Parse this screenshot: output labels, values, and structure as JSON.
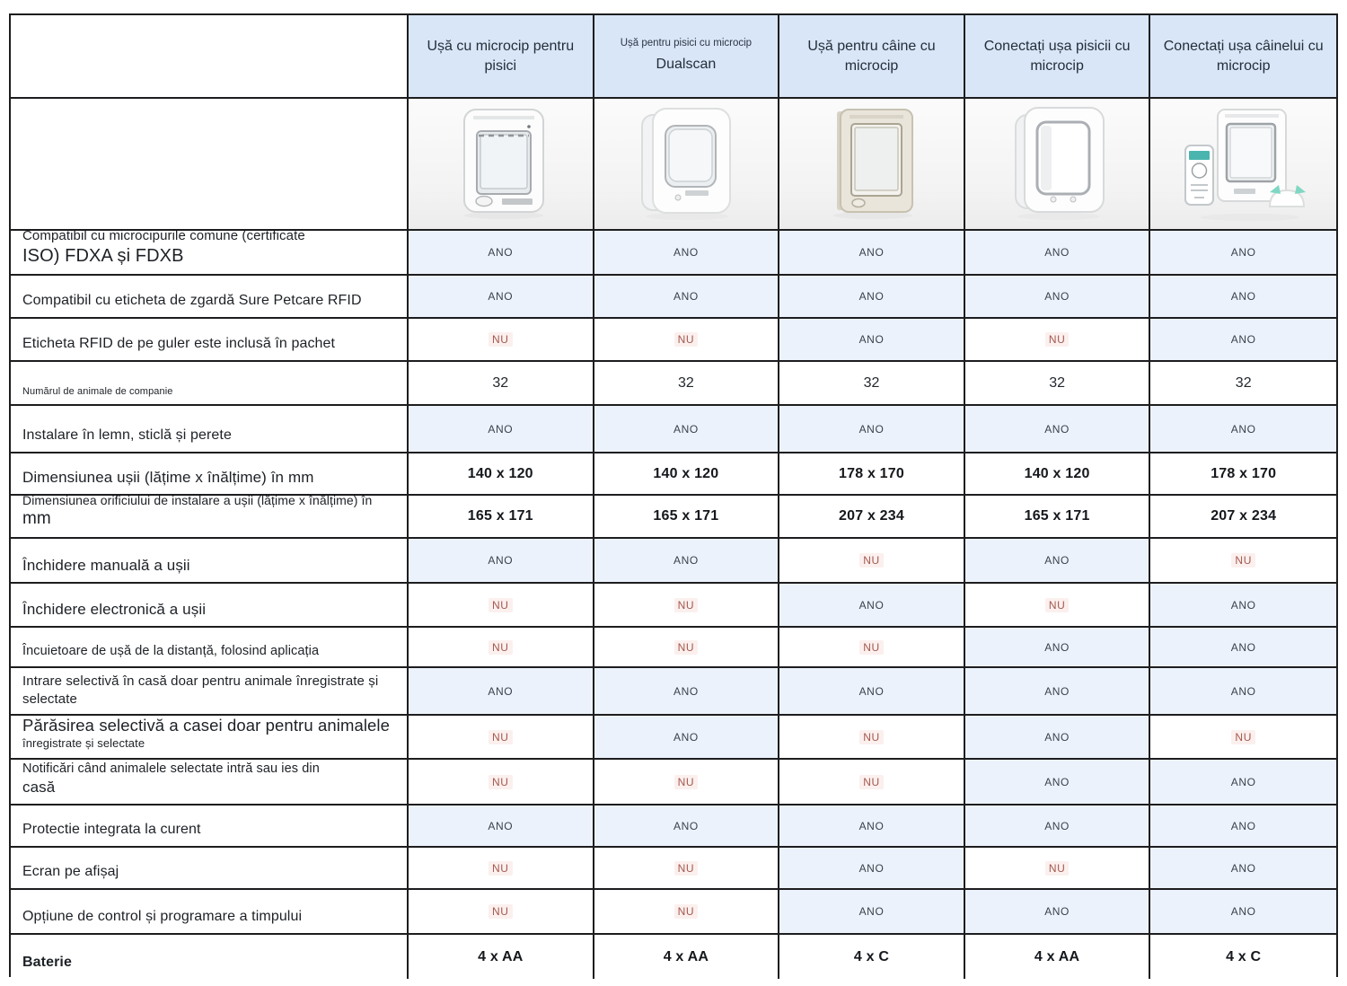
{
  "table": {
    "corner_label": "",
    "yes_label": "ANO",
    "no_label": "NU",
    "products": [
      {
        "small_label": "",
        "label": "Ușă cu microcip pentru pisici",
        "image": "cat-flap"
      },
      {
        "small_label": "Ușă pentru pisici cu microcip",
        "label": "Dualscan",
        "image": "dualscan-flap"
      },
      {
        "small_label": "",
        "label": "Ușă pentru câine cu microcip",
        "image": "dog-flap"
      },
      {
        "small_label": "",
        "label": "Conectați ușa pisicii cu microcip",
        "image": "connect-cat-flap"
      },
      {
        "small_label": "",
        "label": "Conectați ușa câinelui cu microcip",
        "image": "connect-dog-flap"
      }
    ],
    "rows": [
      {
        "id": "compatibil-microcipuri",
        "label_lines": [
          {
            "text": "Compatibil cu microcipurile comune (certificate",
            "size": 15
          },
          {
            "text": "ISO) FDXA și FDXB",
            "size": 20
          }
        ],
        "values": [
          {
            "text": "ANO",
            "kind": "yes"
          },
          {
            "text": "ANO",
            "kind": "yes"
          },
          {
            "text": "ANO",
            "kind": "yes"
          },
          {
            "text": "ANO",
            "kind": "yes"
          },
          {
            "text": "ANO",
            "kind": "yes"
          }
        ]
      },
      {
        "id": "compatibil-eticheta-rfid",
        "label_lines": [
          {
            "text": "Compatibil cu eticheta de zgardă Sure Petcare RFID",
            "size": 16
          }
        ],
        "values": [
          {
            "text": "ANO",
            "kind": "yes"
          },
          {
            "text": "ANO",
            "kind": "yes"
          },
          {
            "text": "ANO",
            "kind": "yes"
          },
          {
            "text": "ANO",
            "kind": "yes"
          },
          {
            "text": "ANO",
            "kind": "yes"
          }
        ]
      },
      {
        "id": "eticheta-rfid-inclusa",
        "label_lines": [
          {
            "text": "Eticheta RFID de pe guler este inclusă în pachet",
            "size": 16
          }
        ],
        "values": [
          {
            "text": "NU",
            "kind": "no"
          },
          {
            "text": "NU",
            "kind": "no"
          },
          {
            "text": "ANO",
            "kind": "yes"
          },
          {
            "text": "NU",
            "kind": "no"
          },
          {
            "text": "ANO",
            "kind": "yes"
          }
        ]
      },
      {
        "id": "numar-animale",
        "label_lines": [
          {
            "text": "Numărul de animale de companie",
            "size": 11
          }
        ],
        "values": [
          {
            "text": "32",
            "kind": "number"
          },
          {
            "text": "32",
            "kind": "number"
          },
          {
            "text": "32",
            "kind": "number"
          },
          {
            "text": "32",
            "kind": "number"
          },
          {
            "text": "32",
            "kind": "number"
          }
        ]
      },
      {
        "id": "instalare-lemn-sticla-perete",
        "label_lines": [
          {
            "text": "Instalare în lemn, sticlă și perete",
            "size": 16
          }
        ],
        "values": [
          {
            "text": "ANO",
            "kind": "yes"
          },
          {
            "text": "ANO",
            "kind": "yes"
          },
          {
            "text": "ANO",
            "kind": "yes"
          },
          {
            "text": "ANO",
            "kind": "yes"
          },
          {
            "text": "ANO",
            "kind": "yes"
          }
        ]
      },
      {
        "id": "dimensiune-usa",
        "label_lines": [
          {
            "text": "Dimensiunea ușii (lățime x înălțime) în mm",
            "size": 17
          }
        ],
        "values": [
          {
            "text": "140 x 120",
            "kind": "dim"
          },
          {
            "text": "140 x 120",
            "kind": "dim"
          },
          {
            "text": "178 x 170",
            "kind": "dim"
          },
          {
            "text": "140 x 120",
            "kind": "dim"
          },
          {
            "text": "178 x 170",
            "kind": "dim"
          }
        ]
      },
      {
        "id": "dimensiune-orificiu",
        "label_lines": [
          {
            "text": "Dimensiunea orificiului de instalare a ușii (lățime x înălțime) în",
            "size": 14
          },
          {
            "text": "mm",
            "size": 19
          }
        ],
        "values": [
          {
            "text": "165 x 171",
            "kind": "dim"
          },
          {
            "text": "165 x 171",
            "kind": "dim"
          },
          {
            "text": "207 x 234",
            "kind": "dim"
          },
          {
            "text": "165 x 171",
            "kind": "dim"
          },
          {
            "text": "207 x 234",
            "kind": "dim"
          }
        ]
      },
      {
        "id": "inchidere-manuala",
        "label_lines": [
          {
            "text": "Închidere manuală a ușii",
            "size": 17
          }
        ],
        "values": [
          {
            "text": "ANO",
            "kind": "yes"
          },
          {
            "text": "ANO",
            "kind": "yes"
          },
          {
            "text": "NU",
            "kind": "no"
          },
          {
            "text": "ANO",
            "kind": "yes"
          },
          {
            "text": "NU",
            "kind": "no"
          }
        ]
      },
      {
        "id": "inchidere-electronica",
        "label_lines": [
          {
            "text": "Închidere electronică a ușii",
            "size": 17
          }
        ],
        "values": [
          {
            "text": "NU",
            "kind": "no"
          },
          {
            "text": "NU",
            "kind": "no"
          },
          {
            "text": "ANO",
            "kind": "yes"
          },
          {
            "text": "NU",
            "kind": "no"
          },
          {
            "text": "ANO",
            "kind": "yes"
          }
        ]
      },
      {
        "id": "incuietoare-distanta-aplicatie",
        "label_lines": [
          {
            "text": "Încuietoare de ușă de la distanță, folosind aplicația",
            "size": 14.5
          }
        ],
        "values": [
          {
            "text": "NU",
            "kind": "no"
          },
          {
            "text": "NU",
            "kind": "no"
          },
          {
            "text": "NU",
            "kind": "no"
          },
          {
            "text": "ANO",
            "kind": "yes"
          },
          {
            "text": "ANO",
            "kind": "yes"
          }
        ]
      },
      {
        "id": "intrare-selectiva",
        "label_lines": [
          {
            "text": "Intrare selectivă în casă doar pentru animale înregistrate și",
            "size": 15
          },
          {
            "text": "selectate",
            "size": 15
          }
        ],
        "values": [
          {
            "text": "ANO",
            "kind": "yes"
          },
          {
            "text": "ANO",
            "kind": "yes"
          },
          {
            "text": "ANO",
            "kind": "yes"
          },
          {
            "text": "ANO",
            "kind": "yes"
          },
          {
            "text": "ANO",
            "kind": "yes"
          }
        ]
      },
      {
        "id": "parasire-selectiva",
        "label_lines": [
          {
            "text": "Părăsirea selectivă a casei doar pentru animalele",
            "size": 18.5
          },
          {
            "text": "înregistrate și selectate",
            "size": 13
          }
        ],
        "values": [
          {
            "text": "NU",
            "kind": "no"
          },
          {
            "text": "ANO",
            "kind": "yes"
          },
          {
            "text": "NU",
            "kind": "no"
          },
          {
            "text": "ANO",
            "kind": "yes"
          },
          {
            "text": "NU",
            "kind": "no"
          }
        ]
      },
      {
        "id": "notificari-intrare-iesire",
        "label_lines": [
          {
            "text": "Notificări când animalele selectate intră sau ies din",
            "size": 14.5
          },
          {
            "text": "casă",
            "size": 17
          }
        ],
        "values": [
          {
            "text": "NU",
            "kind": "no"
          },
          {
            "text": "NU",
            "kind": "no"
          },
          {
            "text": "NU",
            "kind": "no"
          },
          {
            "text": "ANO",
            "kind": "yes"
          },
          {
            "text": "ANO",
            "kind": "yes"
          }
        ]
      },
      {
        "id": "protectie-curent",
        "label_lines": [
          {
            "text": "Protectie integrata la curent",
            "size": 16
          }
        ],
        "values": [
          {
            "text": "ANO",
            "kind": "yes"
          },
          {
            "text": "ANO",
            "kind": "yes"
          },
          {
            "text": "ANO",
            "kind": "yes"
          },
          {
            "text": "ANO",
            "kind": "yes"
          },
          {
            "text": "ANO",
            "kind": "yes"
          }
        ]
      },
      {
        "id": "ecran-afisaj",
        "label_lines": [
          {
            "text": "Ecran pe afișaj",
            "size": 16
          }
        ],
        "values": [
          {
            "text": "NU",
            "kind": "no"
          },
          {
            "text": "NU",
            "kind": "no"
          },
          {
            "text": "ANO",
            "kind": "yes"
          },
          {
            "text": "NU",
            "kind": "no"
          },
          {
            "text": "ANO",
            "kind": "yes"
          }
        ]
      },
      {
        "id": "control-programare-timp",
        "label_lines": [
          {
            "text": "Opțiune de control și programare a timpului",
            "size": 16
          }
        ],
        "values": [
          {
            "text": "NU",
            "kind": "no"
          },
          {
            "text": "NU",
            "kind": "no"
          },
          {
            "text": "ANO",
            "kind": "yes"
          },
          {
            "text": "ANO",
            "kind": "yes"
          },
          {
            "text": "ANO",
            "kind": "yes"
          }
        ]
      },
      {
        "id": "baterie",
        "label_lines": [
          {
            "text": "Baterie",
            "size": 16,
            "bold": true
          }
        ],
        "values": [
          {
            "text": "4 x AA",
            "kind": "battery"
          },
          {
            "text": "4 x AA",
            "kind": "battery"
          },
          {
            "text": "4 x C",
            "kind": "battery"
          },
          {
            "text": "4 x AA",
            "kind": "battery"
          },
          {
            "text": "4 x C",
            "kind": "battery"
          }
        ]
      }
    ],
    "colors": {
      "header_bg": "#d9e6f7",
      "yes_cell_bg": "#ecf2fb",
      "no_text": "#a4584e",
      "yes_text": "#3a414d",
      "border": "#1d1d1f"
    }
  }
}
